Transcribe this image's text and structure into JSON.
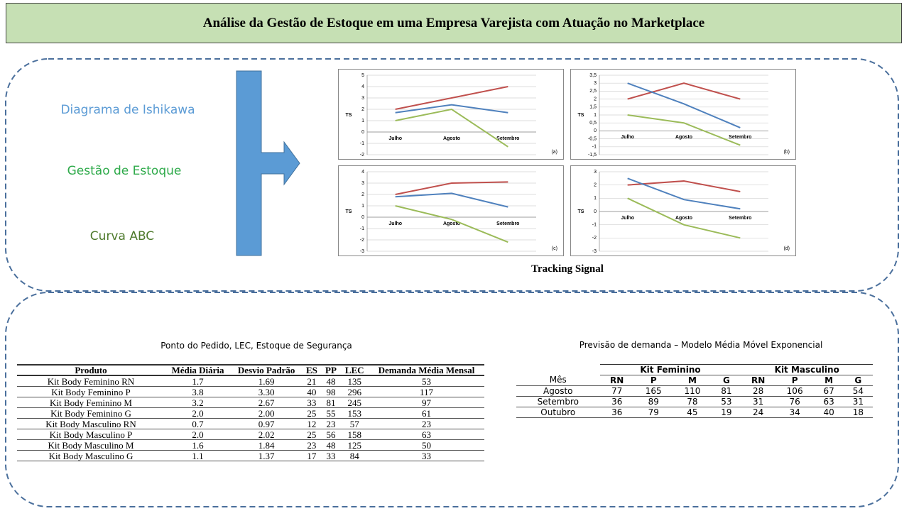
{
  "header": {
    "title": "Análise da Gestão de Estoque em uma Empresa Varejista com Atuação no Marketplace"
  },
  "concepts": [
    "Diagrama de Ishikawa",
    "Gestão de Estoque",
    "Curva ABC"
  ],
  "chart_data": [
    {
      "type": "line",
      "panel_label": "(a)",
      "y_label": "TS",
      "categories": [
        "Julho",
        "Agosto",
        "Setembro"
      ],
      "ylim": [
        -2,
        5
      ],
      "yticks": [
        -2,
        -1,
        0,
        1,
        2,
        3,
        4,
        5
      ],
      "grid": true,
      "series": [
        {
          "color": "#c0504d",
          "values": [
            2,
            3,
            4
          ]
        },
        {
          "color": "#4f81bd",
          "values": [
            1.7,
            2.4,
            1.7
          ]
        },
        {
          "color": "#9bbb59",
          "values": [
            1,
            2,
            -1.3
          ]
        }
      ]
    },
    {
      "type": "line",
      "panel_label": "(b)",
      "y_label": "TS",
      "categories": [
        "Julho",
        "Agosto",
        "Setembro"
      ],
      "ylim": [
        -1.5,
        3.5
      ],
      "yticks": [
        {
          "value": -1.5,
          "label": "-1,5"
        },
        -1,
        {
          "value": -0.5,
          "label": "-0,5"
        },
        0,
        {
          "value": 0.5,
          "label": "0,5"
        },
        1,
        {
          "value": 1.5,
          "label": "1,5"
        },
        2,
        {
          "value": 2.5,
          "label": "2,5"
        },
        3,
        {
          "value": 3.5,
          "label": "3,5"
        }
      ],
      "grid": true,
      "series": [
        {
          "color": "#c0504d",
          "values": [
            2,
            3,
            2
          ]
        },
        {
          "color": "#4f81bd",
          "values": [
            3,
            1.7,
            0.2
          ]
        },
        {
          "color": "#9bbb59",
          "values": [
            1,
            0.5,
            -0.9
          ]
        }
      ]
    },
    {
      "type": "line",
      "panel_label": "(c)",
      "y_label": "TS",
      "categories": [
        "Julho",
        "Agosto",
        "Setembro"
      ],
      "ylim": [
        -3,
        4
      ],
      "yticks": [
        -3,
        -2,
        -1,
        0,
        1,
        2,
        3,
        4
      ],
      "grid": true,
      "series": [
        {
          "color": "#c0504d",
          "values": [
            2,
            3,
            3.1
          ]
        },
        {
          "color": "#4f81bd",
          "values": [
            1.8,
            2.1,
            0.9
          ]
        },
        {
          "color": "#9bbb59",
          "values": [
            1,
            -0.2,
            -2.2
          ]
        }
      ]
    },
    {
      "type": "line",
      "panel_label": "(d)",
      "y_label": "TS",
      "categories": [
        "Julho",
        "Agosto",
        "Setembro"
      ],
      "ylim": [
        -3,
        3
      ],
      "yticks": [
        -3,
        -2,
        -1,
        0,
        1,
        2,
        3
      ],
      "grid": true,
      "series": [
        {
          "color": "#c0504d",
          "values": [
            2,
            2.3,
            1.5
          ]
        },
        {
          "color": "#4f81bd",
          "values": [
            2.5,
            0.9,
            0.2
          ]
        },
        {
          "color": "#9bbb59",
          "values": [
            1,
            -1,
            -2
          ]
        }
      ]
    }
  ],
  "charts_caption": "Tracking Signal",
  "table1": {
    "title": "Ponto do Pedido, LEC, Estoque de Segurança",
    "columns": [
      "Produto",
      "Média Diária",
      "Desvio Padrão",
      "ES",
      "PP",
      "LEC",
      "Demanda Média Mensal"
    ],
    "rows": [
      [
        "Kit Body Feminino RN",
        "1.7",
        "1.69",
        "21",
        "48",
        "135",
        "53"
      ],
      [
        "Kit Body Feminino P",
        "3.8",
        "3.30",
        "40",
        "98",
        "296",
        "117"
      ],
      [
        "Kit Body Feminino M",
        "3.2",
        "2.67",
        "33",
        "81",
        "245",
        "97"
      ],
      [
        "Kit Body Feminino G",
        "2.0",
        "2.00",
        "25",
        "55",
        "153",
        "61"
      ],
      [
        "Kit Body Masculino RN",
        "0.7",
        "0.97",
        "12",
        "23",
        "57",
        "23"
      ],
      [
        "Kit Body Masculino P",
        "2.0",
        "2.02",
        "25",
        "56",
        "158",
        "63"
      ],
      [
        "Kit Body Masculino M",
        "1.6",
        "1.84",
        "23",
        "48",
        "125",
        "50"
      ],
      [
        "Kit Body Masculino G",
        "1.1",
        "1.37",
        "17",
        "33",
        "84",
        "33"
      ]
    ]
  },
  "table2": {
    "title": "Previsão de demanda – Modelo Média Móvel Exponencial",
    "groups": [
      "Kit Feminino",
      "Kit Masculino"
    ],
    "columns": [
      "Mês",
      "RN",
      "P",
      "M",
      "G",
      "RN",
      "P",
      "M",
      "G"
    ],
    "rows": [
      [
        "Agosto",
        "77",
        "165",
        "110",
        "81",
        "28",
        "106",
        "67",
        "54"
      ],
      [
        "Setembro",
        "36",
        "89",
        "78",
        "53",
        "31",
        "76",
        "63",
        "31"
      ],
      [
        "Outubro",
        "36",
        "79",
        "45",
        "19",
        "24",
        "34",
        "40",
        "18"
      ]
    ]
  }
}
